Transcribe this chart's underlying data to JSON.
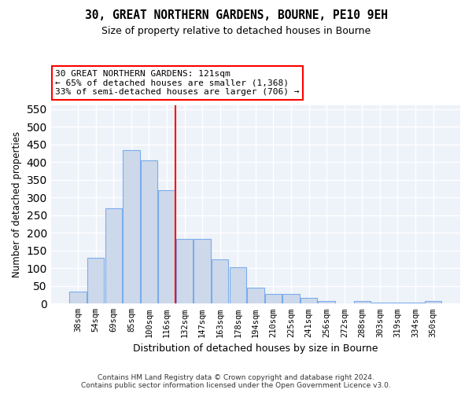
{
  "title1": "30, GREAT NORTHERN GARDENS, BOURNE, PE10 9EH",
  "title2": "Size of property relative to detached houses in Bourne",
  "xlabel": "Distribution of detached houses by size in Bourne",
  "ylabel": "Number of detached properties",
  "categories": [
    "38sqm",
    "54sqm",
    "69sqm",
    "85sqm",
    "100sqm",
    "116sqm",
    "132sqm",
    "147sqm",
    "163sqm",
    "178sqm",
    "194sqm",
    "210sqm",
    "225sqm",
    "241sqm",
    "256sqm",
    "272sqm",
    "288sqm",
    "303sqm",
    "319sqm",
    "334sqm",
    "350sqm"
  ],
  "values": [
    35,
    130,
    270,
    435,
    405,
    320,
    183,
    183,
    125,
    103,
    45,
    28,
    28,
    17,
    7,
    0,
    8,
    3,
    3,
    3,
    7
  ],
  "bar_color": "#cdd9ea",
  "bar_edge_color": "#7aaced",
  "vline_x": 5.5,
  "vline_color": "red",
  "annotation_text": "30 GREAT NORTHERN GARDENS: 121sqm\n← 65% of detached houses are smaller (1,368)\n33% of semi-detached houses are larger (706) →",
  "annotation_box_color": "white",
  "annotation_box_edge_color": "red",
  "ylim": [
    0,
    560
  ],
  "yticks": [
    0,
    50,
    100,
    150,
    200,
    250,
    300,
    350,
    400,
    450,
    500,
    550
  ],
  "footer1": "Contains HM Land Registry data © Crown copyright and database right 2024.",
  "footer2": "Contains public sector information licensed under the Open Government Licence v3.0.",
  "bg_color": "#ffffff",
  "plot_bg_color": "#eef2f9"
}
